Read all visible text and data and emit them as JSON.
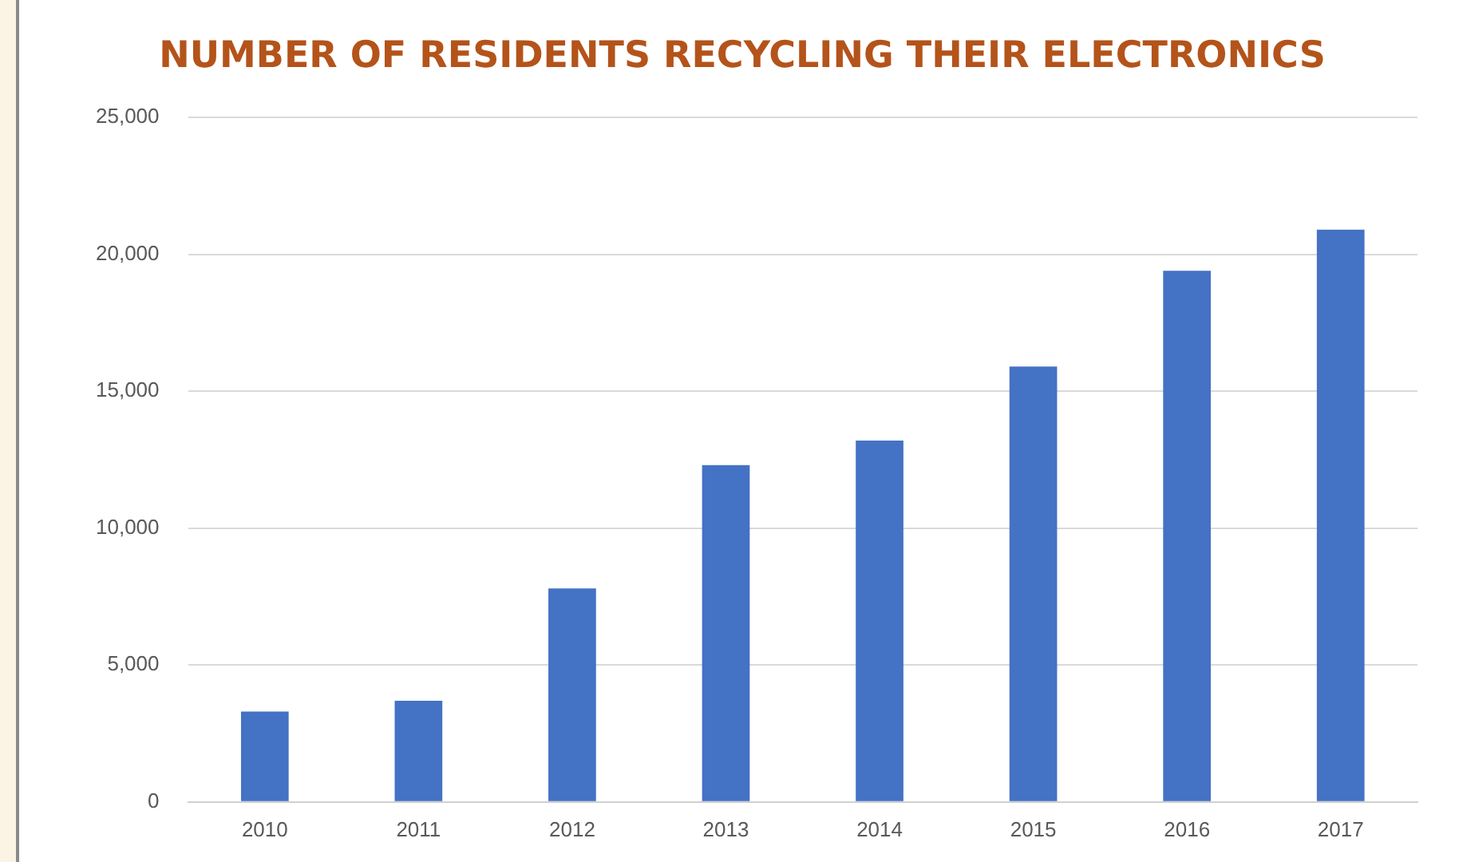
{
  "chart_data": {
    "type": "bar",
    "title": "NUMBER OF RESIDENTS RECYCLING THEIR ELECTRONICS",
    "categories": [
      "2010",
      "2011",
      "2012",
      "2013",
      "2014",
      "2015",
      "2016",
      "2017"
    ],
    "values": [
      3300,
      3700,
      7800,
      12300,
      13200,
      15900,
      19400,
      20900
    ],
    "color": "#4472c4",
    "ylim": [
      0,
      25000
    ],
    "yticks": [
      {
        "value": 0,
        "label": "0"
      },
      {
        "value": 5000,
        "label": "5,000"
      },
      {
        "value": 10000,
        "label": "10,000"
      },
      {
        "value": 15000,
        "label": "15,000"
      },
      {
        "value": 20000,
        "label": "20,000"
      },
      {
        "value": 25000,
        "label": "25,000"
      }
    ],
    "grid": "y"
  }
}
